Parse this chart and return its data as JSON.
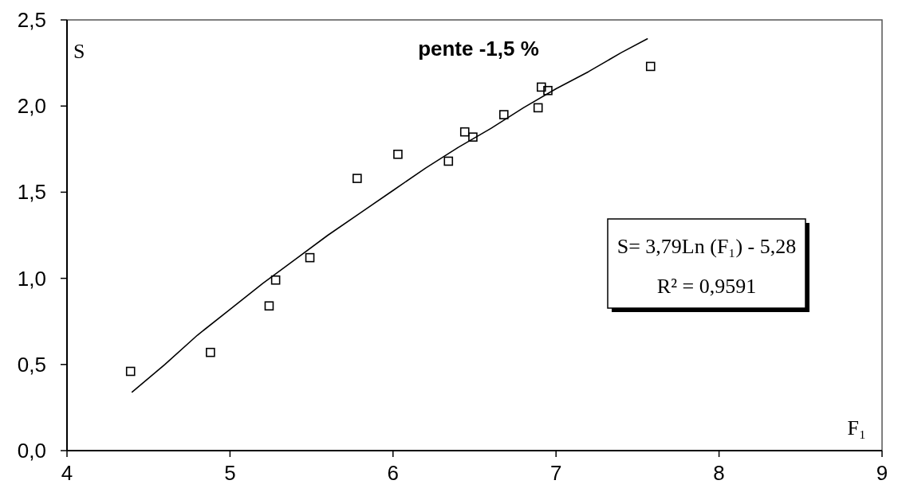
{
  "chart_data": {
    "type": "scatter",
    "title": "pente -1,5 %",
    "xlabel": "F₁",
    "ylabel": "S",
    "annotations": [
      "S= 3,79Ln (F₁) - 5,28",
      "R² = 0,9591"
    ],
    "xlim": [
      4,
      9
    ],
    "xticks": [
      4,
      5,
      6,
      7,
      8,
      9
    ],
    "ylim": [
      0,
      2.5
    ],
    "yticks": [
      {
        "value": 0,
        "label": "0,0"
      },
      {
        "value": 0.5,
        "label": "0,5"
      },
      {
        "value": 1,
        "label": "1,0"
      },
      {
        "value": 1.5,
        "label": "1,5"
      },
      {
        "value": 2,
        "label": "2,0"
      },
      {
        "value": 2.5,
        "label": "2,5"
      }
    ],
    "marker": "square",
    "series": [
      {
        "color": "#000000",
        "x": [
          4.39,
          4.88,
          5.24,
          5.28,
          5.49,
          5.78,
          6.03,
          6.34,
          6.44,
          6.49,
          6.68,
          6.89,
          6.91,
          6.95,
          7.58
        ],
        "values": [
          0.46,
          0.57,
          0.84,
          0.99,
          1.12,
          1.58,
          1.72,
          1.68,
          1.85,
          1.82,
          1.95,
          1.99,
          2.11,
          2.09,
          2.23
        ]
      },
      {
        "type": "line",
        "color": "#000000",
        "marker": "none",
        "line_style": "solid",
        "x": [
          4.4,
          4.6,
          4.8,
          5.0,
          5.2,
          5.4,
          5.6,
          5.8,
          6.0,
          6.2,
          6.4,
          6.6,
          6.8,
          7.0,
          7.2,
          7.4,
          7.56
        ],
        "values": [
          0.34,
          0.5,
          0.67,
          0.82,
          0.97,
          1.11,
          1.25,
          1.38,
          1.51,
          1.64,
          1.76,
          1.87,
          1.99,
          2.1,
          2.2,
          2.31,
          2.39
        ]
      }
    ]
  }
}
